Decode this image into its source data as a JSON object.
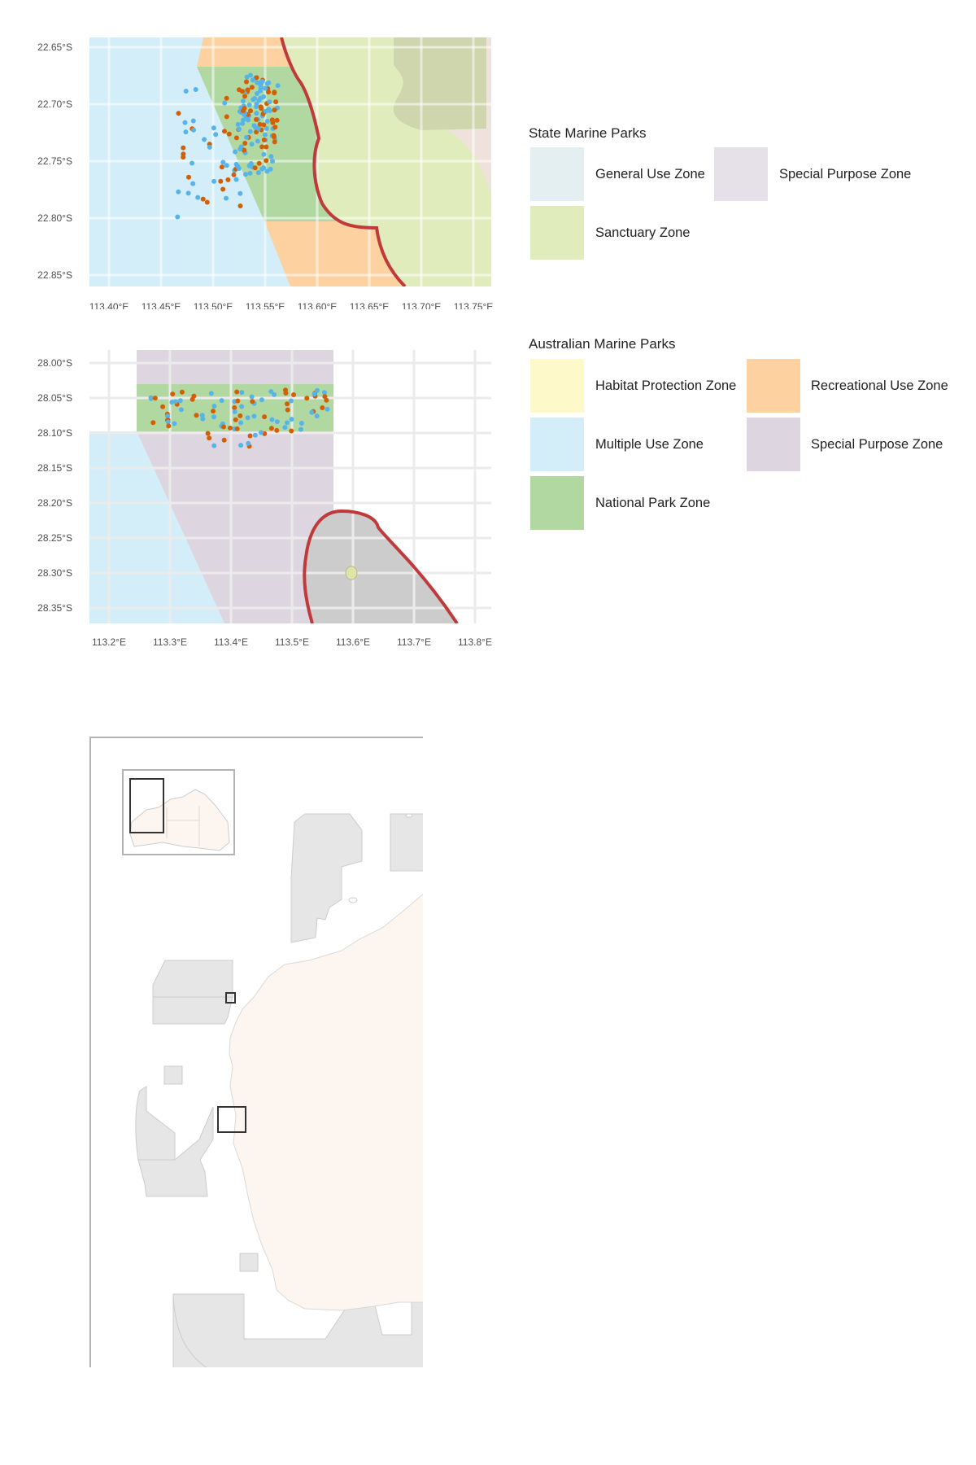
{
  "map1": {
    "x_ticks": [
      "113.40°E",
      "113.45°E",
      "113.50°E",
      "113.55°E",
      "113.60°E",
      "113.65°E",
      "113.70°E",
      "113.75°E"
    ],
    "y_ticks": [
      "22.65°S",
      "22.70°S",
      "22.75°S",
      "22.80°S",
      "22.85°S"
    ]
  },
  "map2": {
    "x_ticks": [
      "113.2°E",
      "113.3°E",
      "113.4°E",
      "113.5°E",
      "113.6°E",
      "113.7°E",
      "113.8°E"
    ],
    "y_ticks": [
      "28.00°S",
      "28.05°S",
      "28.10°S",
      "28.15°S",
      "28.20°S",
      "28.25°S",
      "28.30°S",
      "28.35°S"
    ]
  },
  "state_legend": {
    "title": "State Marine Parks",
    "items": [
      {
        "label": "General Use Zone",
        "color": "#e4eff1"
      },
      {
        "label": "Special Purpose Zone",
        "color": "#e6e0e8"
      },
      {
        "label": "Sanctuary Zone",
        "color": "#e1ecbd"
      }
    ]
  },
  "amp_legend": {
    "title": "Australian Marine Parks",
    "items": [
      {
        "label": "Habitat Protection Zone",
        "color": "#fdf9c8"
      },
      {
        "label": "Recreational Use Zone",
        "color": "#fed1a1"
      },
      {
        "label": "Multiple Use Zone",
        "color": "#d3edf9"
      },
      {
        "label": "Special Purpose Zone",
        "color": "#ddd6e0"
      },
      {
        "label": "National Park Zone",
        "color": "#b2d8a2"
      }
    ]
  },
  "point_colors": {
    "blue": "#56b4e9",
    "orange": "#d55e00"
  },
  "boundary_color": "#c0393b",
  "land_color": "#fdf6f0"
}
